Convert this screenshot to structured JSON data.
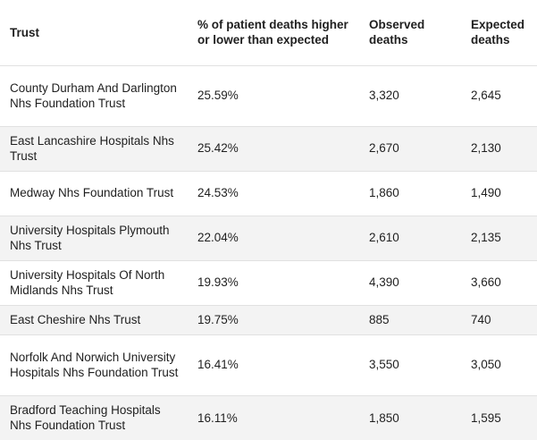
{
  "table": {
    "headers": {
      "trust": "Trust",
      "pct": "% of patient deaths higher or lower than expected",
      "observed": "Observed deaths",
      "expected": "Expected deaths"
    },
    "rows": [
      {
        "trust": "County Durham And Darlington Nhs Foundation Trust",
        "pct": "25.59%",
        "observed": "3,320",
        "expected": "2,645"
      },
      {
        "trust": "East Lancashire Hospitals Nhs Trust",
        "pct": "25.42%",
        "observed": "2,670",
        "expected": "2,130"
      },
      {
        "trust": "Medway Nhs Foundation Trust",
        "pct": "24.53%",
        "observed": "1,860",
        "expected": "1,490"
      },
      {
        "trust": "University Hospitals Plymouth Nhs Trust",
        "pct": "22.04%",
        "observed": "2,610",
        "expected": "2,135"
      },
      {
        "trust": "University Hospitals Of North Midlands Nhs Trust",
        "pct": "19.93%",
        "observed": "4,390",
        "expected": "3,660"
      },
      {
        "trust": "East Cheshire Nhs Trust",
        "pct": "19.75%",
        "observed": "885",
        "expected": "740"
      },
      {
        "trust": "Norfolk And Norwich University Hospitals Nhs Foundation Trust",
        "pct": "16.41%",
        "observed": "3,550",
        "expected": "3,050"
      },
      {
        "trust": "Bradford Teaching Hospitals Nhs Foundation Trust",
        "pct": "16.11%",
        "observed": "1,850",
        "expected": "1,595"
      }
    ]
  }
}
